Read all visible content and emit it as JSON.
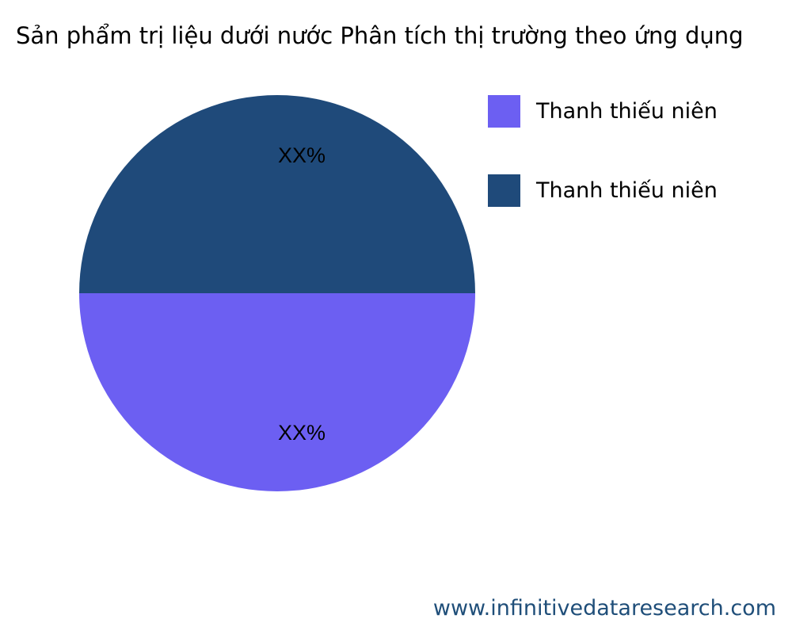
{
  "title": "Sản phẩm trị liệu dưới nước Phân tích thị trường theo ứng dụng",
  "chart_data": {
    "type": "pie",
    "title": "Sản phẩm trị liệu dưới nước Phân tích thị trường theo ứng dụng",
    "slices": [
      {
        "label": "Thanh thiếu niên",
        "value": 50,
        "data_label": "XX%",
        "color": "#1f4a7a"
      },
      {
        "label": "Thanh thiếu niên",
        "value": 50,
        "data_label": "XX%",
        "color": "#6c5ff2"
      }
    ],
    "legend_labels": [
      "Thanh thiếu niên",
      "Thanh thiếu niên"
    ],
    "legend_colors": [
      "#6c5ff2",
      "#1f4a7a"
    ],
    "legend_placement": "top-right"
  },
  "footer": "www.infinitivedataresearch.com"
}
